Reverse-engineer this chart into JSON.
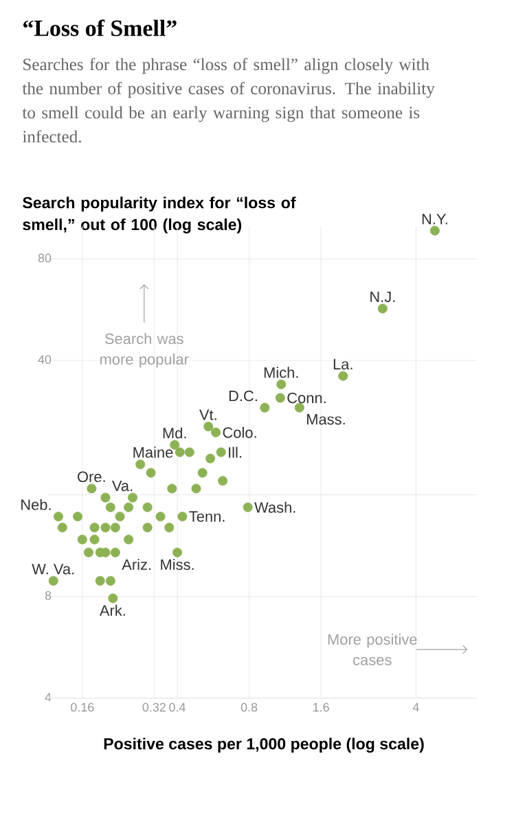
{
  "chart_data": {
    "type": "scatter",
    "title": "“Loss of Smell”",
    "subtitle": "Searches for the phrase “loss of smell” align closely with the number of positive cases of coronavirus. The inability to smell could be an early warning sign that someone is infected.",
    "ylabel": "Search popularity index for “loss of smell,” out of 100 (log scale)",
    "xlabel": "Positive cases per 1,000 people (log scale)",
    "log": "xy",
    "grid": true,
    "xlim": [
      0.115,
      7.2
    ],
    "ylim": [
      4,
      100
    ],
    "xticks": [
      0.16,
      0.32,
      0.4,
      0.8,
      1.6,
      4
    ],
    "yticks": [
      4,
      8,
      {
        "value": 16,
        "label": null
      },
      40,
      80
    ],
    "series": [
      {
        "color": "#8db255",
        "x": [
          4.8,
          2.9,
          1.98,
          1.09,
          1.08,
          0.93,
          1.3,
          0.54,
          0.58,
          0.39,
          0.41,
          0.61,
          0.175,
          0.2,
          0.127,
          0.79,
          0.42,
          0.121,
          0.22,
          0.4,
          0.215,
          0.45,
          0.55,
          0.28,
          0.31,
          0.51,
          0.62,
          0.38,
          0.48,
          0.26,
          0.21,
          0.25,
          0.3,
          0.153,
          0.23,
          0.34,
          0.132,
          0.18,
          0.2,
          0.22,
          0.3,
          0.37,
          0.16,
          0.18,
          0.25,
          0.17,
          0.19,
          0.2,
          0.19,
          0.21
        ],
        "values": [
          97,
          57,
          36,
          34,
          31,
          29,
          29,
          25.5,
          24.5,
          22.5,
          21.4,
          21.4,
          16.7,
          15.7,
          13.8,
          14.7,
          13.8,
          8.9,
          10.8,
          10.8,
          7.9,
          21.4,
          20.5,
          19.7,
          18.6,
          18.6,
          17.6,
          16.7,
          16.7,
          15.7,
          14.7,
          14.7,
          14.7,
          13.8,
          13.8,
          13.8,
          12.8,
          12.8,
          12.8,
          12.8,
          12.8,
          12.8,
          11.8,
          11.8,
          11.8,
          10.8,
          10.8,
          10.8,
          8.9,
          8.9
        ]
      }
    ],
    "annotations": [
      "Search was more popular",
      "More positive cases",
      {
        "text": "N.Y.",
        "x": 4.8,
        "y": 97
      },
      {
        "text": "N.J.",
        "x": 2.9,
        "y": 57
      },
      {
        "text": "La.",
        "x": 1.98,
        "y": 36
      },
      {
        "text": "Mich.",
        "x": 1.09,
        "y": 34
      },
      {
        "text": "Conn.",
        "x": 1.08,
        "y": 31
      },
      {
        "text": "D.C.",
        "x": 0.93,
        "y": 29
      },
      {
        "text": "Mass.",
        "x": 1.3,
        "y": 29
      },
      {
        "text": "Vt.",
        "x": 0.54,
        "y": 25.5
      },
      {
        "text": "Colo.",
        "x": 0.58,
        "y": 24.5
      },
      {
        "text": "Md.",
        "x": 0.39,
        "y": 22.5
      },
      {
        "text": "Maine",
        "x": 0.41,
        "y": 21.4
      },
      {
        "text": "Ill.",
        "x": 0.61,
        "y": 21.4
      },
      {
        "text": "Ore.",
        "x": 0.175,
        "y": 16.7
      },
      {
        "text": "Va.",
        "x": 0.2,
        "y": 15.7
      },
      {
        "text": "Neb.",
        "x": 0.127,
        "y": 13.8
      },
      {
        "text": "Wash.",
        "x": 0.79,
        "y": 14.7
      },
      {
        "text": "Tenn.",
        "x": 0.42,
        "y": 13.8
      },
      {
        "text": "W. Va.",
        "x": 0.121,
        "y": 8.9
      },
      {
        "text": "Ariz.",
        "x": 0.22,
        "y": 10.8
      },
      {
        "text": "Miss.",
        "x": 0.4,
        "y": 10.8
      },
      {
        "text": "Ark.",
        "x": 0.215,
        "y": 7.9
      }
    ]
  }
}
